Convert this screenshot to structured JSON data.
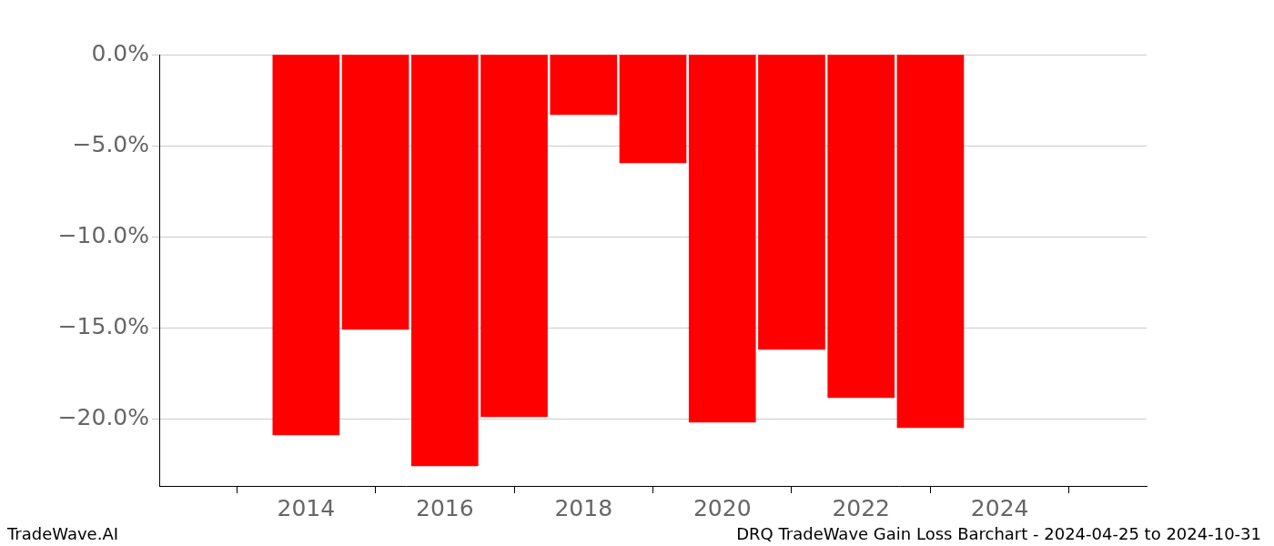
{
  "chart_data": {
    "type": "bar",
    "x": [
      2014,
      2015,
      2016,
      2017,
      2018,
      2019,
      2020,
      2021,
      2022,
      2023
    ],
    "values": [
      -20.9,
      -15.1,
      -22.6,
      -19.9,
      -3.3,
      -5.95,
      -20.2,
      -16.2,
      -18.85,
      -20.5
    ],
    "color": "#ff0000",
    "xlim": [
      2013.07,
      2024.93
    ],
    "xticks": [
      2014,
      2016,
      2018,
      2020,
      2022,
      2024
    ],
    "ylim": [
      -23.7,
      0
    ],
    "yticks": [
      {
        "value": -20,
        "label": "−20.0%"
      },
      {
        "value": -15,
        "label": "−15.0%"
      },
      {
        "value": -10,
        "label": "−10.0%"
      },
      {
        "value": -5,
        "label": "−5.0%"
      },
      {
        "value": 0,
        "label": "0.0%"
      }
    ],
    "grid": true,
    "annotations": [
      "TradeWave.AI",
      "DRQ TradeWave Gain Loss Barchart - 2024-04-25 to 2024-10-31"
    ]
  }
}
